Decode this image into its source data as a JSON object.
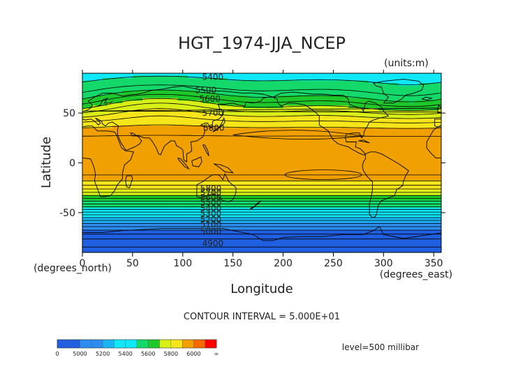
{
  "chart_data": {
    "type": "heatmap",
    "title": "HGT_1974-JJA_NCEP",
    "units_label": "(units:m)",
    "xlabel": "Longitude",
    "ylabel": "Latitude",
    "x_unit_label": "(degrees_east)",
    "y_unit_label": "(degrees_north)",
    "xlim": [
      0,
      357.5
    ],
    "ylim": [
      -90,
      90
    ],
    "x_ticks": [
      0,
      50,
      100,
      150,
      200,
      250,
      300,
      350
    ],
    "y_ticks": [
      -50,
      0,
      50
    ],
    "contour_interval_text": "CONTOUR INTERVAL = 5.000E+01",
    "level_text": "level=500 millibar",
    "contour_labels": [
      {
        "text": "5400",
        "lon": 130,
        "lat": 86
      },
      {
        "text": "5500",
        "lon": 123,
        "lat": 73
      },
      {
        "text": "5600",
        "lon": 127,
        "lat": 64
      },
      {
        "text": "5700",
        "lon": 130,
        "lat": 50
      },
      {
        "text": "5800",
        "lon": 131,
        "lat": 35
      },
      {
        "text": "5800",
        "lon": 128,
        "lat": -26
      },
      {
        "text": "5700",
        "lon": 128,
        "lat": -30
      },
      {
        "text": "5600",
        "lon": 128,
        "lat": -35
      },
      {
        "text": "5500",
        "lon": 128,
        "lat": -40
      },
      {
        "text": "5400",
        "lon": 128,
        "lat": -46
      },
      {
        "text": "5300",
        "lon": 128,
        "lat": -51
      },
      {
        "text": "5200",
        "lon": 128,
        "lat": -57
      },
      {
        "text": "5100",
        "lon": 128,
        "lat": -62
      },
      {
        "text": "5000",
        "lon": 128,
        "lat": -69
      },
      {
        "text": "4900",
        "lon": 130,
        "lat": -81
      }
    ],
    "color_levels": [
      {
        "min": 4800,
        "max": 5000,
        "color": "#1f5fe0"
      },
      {
        "min": 5000,
        "max": 5100,
        "color": "#2c8cf0"
      },
      {
        "min": 5100,
        "max": 5200,
        "color": "#1bb4f2"
      },
      {
        "min": 5200,
        "max": 5400,
        "color": "#10e8f8"
      },
      {
        "min": 5400,
        "max": 5500,
        "color": "#14d86a"
      },
      {
        "min": 5500,
        "max": 5600,
        "color": "#1fc82a"
      },
      {
        "min": 5600,
        "max": 5700,
        "color": "#d8f018"
      },
      {
        "min": 5700,
        "max": 5800,
        "color": "#f5e51a"
      },
      {
        "min": 5800,
        "max": 6000,
        "color": "#f0a000"
      },
      {
        "min": 6000,
        "max": 6100,
        "color": "#f86a00"
      },
      {
        "min": 6100,
        "max": 6200,
        "color": "#ff0000"
      }
    ],
    "colorbar_labels": [
      "0",
      "5000",
      "5200",
      "5400",
      "5600",
      "5800",
      "6000",
      "∞"
    ]
  }
}
